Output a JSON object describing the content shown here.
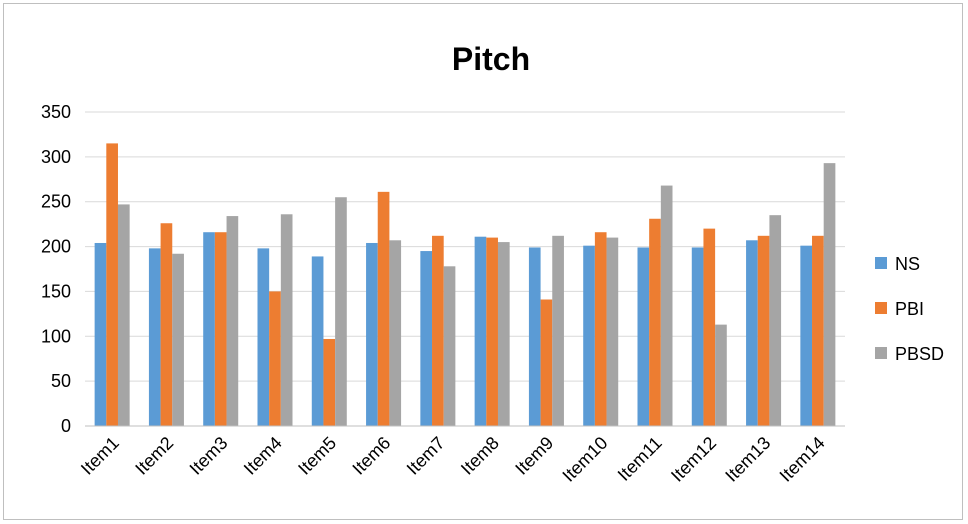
{
  "chart_data": {
    "type": "bar",
    "title": "Pitch",
    "xlabel": "",
    "ylabel": "",
    "ylim": [
      0,
      350
    ],
    "yticks": [
      0,
      50,
      100,
      150,
      200,
      250,
      300,
      350
    ],
    "grid": true,
    "legend_position": "right",
    "categories": [
      "Item1",
      "Item2",
      "Item3",
      "Item4",
      "Item5",
      "Item6",
      "Item7",
      "Item8",
      "Item9",
      "Item10",
      "Item11",
      "Item12",
      "Item13",
      "Item14"
    ],
    "series": [
      {
        "name": "NS",
        "color": "#5b9bd5",
        "values": [
          204,
          198,
          216,
          198,
          189,
          204,
          195,
          211,
          199,
          201,
          199,
          199,
          207,
          201
        ]
      },
      {
        "name": "PBI",
        "color": "#ed7d31",
        "values": [
          315,
          226,
          216,
          150,
          97,
          261,
          212,
          210,
          141,
          216,
          231,
          220,
          212,
          212
        ]
      },
      {
        "name": "PBSD",
        "color": "#a5a5a5",
        "values": [
          247,
          192,
          234,
          236,
          255,
          207,
          178,
          205,
          212,
          210,
          268,
          113,
          235,
          293
        ]
      }
    ]
  }
}
